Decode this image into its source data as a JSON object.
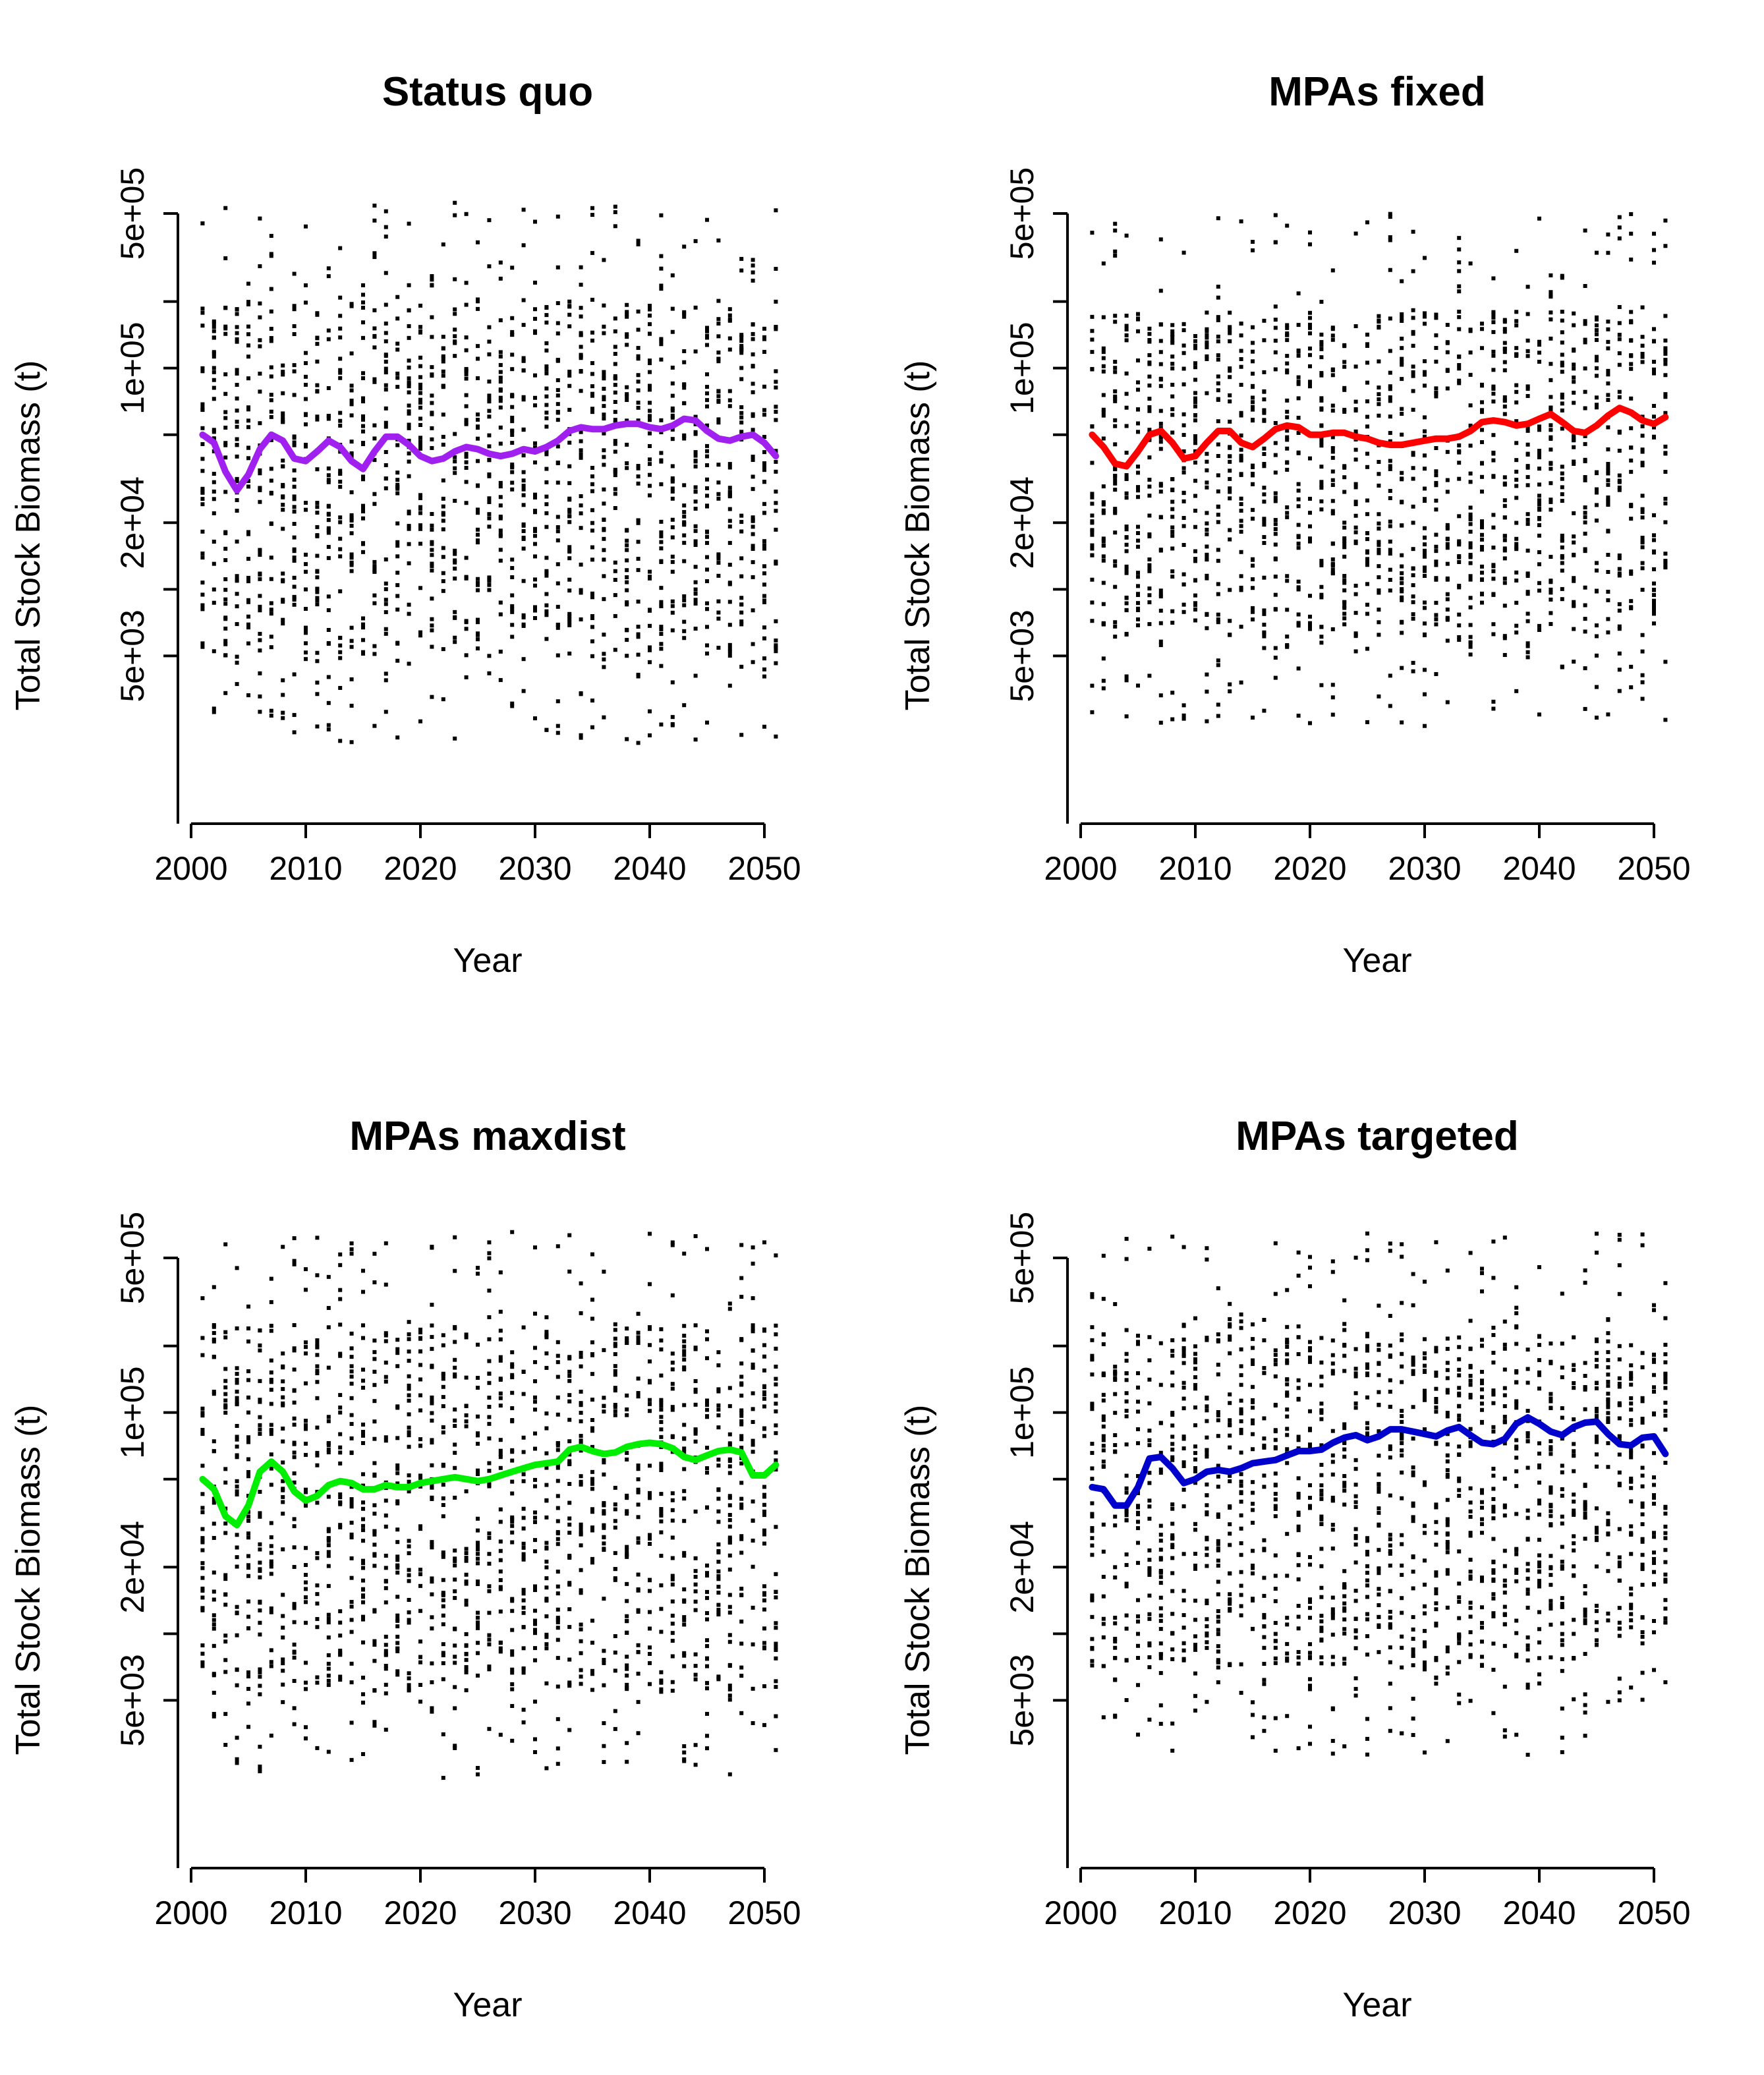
{
  "chart_data": [
    {
      "type": "scatter",
      "title": "Status quo",
      "xlabel": "Year",
      "ylabel": "Total Stock Biomass (t)",
      "x_range": [
        2001,
        2051
      ],
      "x_ticks": [
        2000,
        2010,
        2020,
        2030,
        2040,
        2050
      ],
      "y_scale": "log",
      "y_ticks": [
        {
          "value": 5000,
          "label": "5e+03"
        },
        {
          "value": 20000,
          "label": "2e+04"
        },
        {
          "value": 100000,
          "label": "1e+05"
        },
        {
          "value": 500000,
          "label": "5e+05"
        }
      ],
      "y_minor_ticks": [
        10000,
        50000,
        200000
      ],
      "ylim": [
        1000,
        700000
      ],
      "points_per_year": "about 30 simulation runs, spread between about 5e+03 and 2e+05 t",
      "line_color": "#a020f0",
      "mean_line": {
        "x": [
          2001,
          2002,
          2003,
          2004,
          2005,
          2006,
          2007,
          2008,
          2009,
          2010,
          2011,
          2012,
          2013,
          2014,
          2015,
          2016,
          2017,
          2018,
          2019,
          2020,
          2021,
          2022,
          2023,
          2024,
          2025,
          2026,
          2027,
          2028,
          2029,
          2030,
          2031,
          2032,
          2033,
          2034,
          2035,
          2036,
          2037,
          2038,
          2039,
          2040,
          2041,
          2042,
          2043,
          2044,
          2045,
          2046,
          2047,
          2048,
          2049,
          2050,
          2051
        ],
        "y": [
          50000,
          46000,
          34000,
          28000,
          33000,
          43000,
          50000,
          47000,
          39000,
          38000,
          42000,
          47000,
          44000,
          38000,
          35000,
          42000,
          49000,
          49000,
          45000,
          40000,
          38000,
          39000,
          42000,
          44000,
          43000,
          41000,
          40000,
          41000,
          43000,
          42000,
          44000,
          47000,
          52000,
          54000,
          53000,
          53000,
          55000,
          56000,
          56000,
          54000,
          53000,
          55000,
          59000,
          58000,
          52000,
          48000,
          47000,
          49000,
          50000,
          46000,
          40000
        ]
      },
      "scatter_range": {
        "lower": 5000,
        "upper": 200000
      }
    },
    {
      "type": "scatter",
      "title": "MPAs fixed",
      "xlabel": "Year",
      "ylabel": "Total Stock Biomass (t)",
      "x_range": [
        2001,
        2051
      ],
      "x_ticks": [
        2000,
        2010,
        2020,
        2030,
        2040,
        2050
      ],
      "y_scale": "log",
      "y_ticks": [
        {
          "value": 5000,
          "label": "5e+03"
        },
        {
          "value": 20000,
          "label": "2e+04"
        },
        {
          "value": 100000,
          "label": "1e+05"
        },
        {
          "value": 500000,
          "label": "5e+05"
        }
      ],
      "y_minor_ticks": [
        10000,
        50000,
        200000
      ],
      "ylim": [
        1000,
        700000
      ],
      "line_color": "#ff0000",
      "mean_line": {
        "x": [
          2001,
          2002,
          2003,
          2004,
          2005,
          2006,
          2007,
          2008,
          2009,
          2010,
          2011,
          2012,
          2013,
          2014,
          2015,
          2016,
          2017,
          2018,
          2019,
          2020,
          2021,
          2022,
          2023,
          2024,
          2025,
          2026,
          2027,
          2028,
          2029,
          2030,
          2031,
          2032,
          2033,
          2034,
          2035,
          2036,
          2037,
          2038,
          2039,
          2040,
          2041,
          2042,
          2043,
          2044,
          2045,
          2046,
          2047,
          2048,
          2049,
          2050,
          2051
        ],
        "y": [
          50000,
          44000,
          37000,
          36000,
          42000,
          50000,
          52000,
          46000,
          39000,
          40000,
          46000,
          52000,
          52000,
          46000,
          44000,
          48000,
          53000,
          55000,
          54000,
          50000,
          50000,
          51000,
          51000,
          49000,
          48000,
          46000,
          45000,
          45000,
          46000,
          47000,
          48000,
          48000,
          49000,
          52000,
          57000,
          58000,
          57000,
          55000,
          56000,
          59000,
          62000,
          57000,
          52000,
          51000,
          55000,
          61000,
          66000,
          63000,
          58000,
          56000,
          60000
        ]
      },
      "scatter_range": {
        "lower": 6000,
        "upper": 180000
      }
    },
    {
      "type": "scatter",
      "title": "MPAs maxdist",
      "xlabel": "Year",
      "ylabel": "Total Stock Biomass (t)",
      "x_range": [
        2001,
        2051
      ],
      "x_ticks": [
        2000,
        2010,
        2020,
        2030,
        2040,
        2050
      ],
      "y_scale": "log",
      "y_ticks": [
        {
          "value": 5000,
          "label": "5e+03"
        },
        {
          "value": 20000,
          "label": "2e+04"
        },
        {
          "value": 100000,
          "label": "1e+05"
        },
        {
          "value": 500000,
          "label": "5e+05"
        }
      ],
      "y_minor_ticks": [
        10000,
        50000,
        200000
      ],
      "ylim": [
        1000,
        700000
      ],
      "line_color": "#00ee00",
      "mean_line": {
        "x": [
          2001,
          2002,
          2003,
          2004,
          2005,
          2006,
          2007,
          2008,
          2009,
          2010,
          2011,
          2012,
          2013,
          2014,
          2015,
          2016,
          2017,
          2018,
          2019,
          2020,
          2021,
          2022,
          2023,
          2024,
          2025,
          2026,
          2027,
          2028,
          2029,
          2030,
          2031,
          2032,
          2033,
          2034,
          2035,
          2036,
          2037,
          2038,
          2039,
          2040,
          2041,
          2042,
          2043,
          2044,
          2045,
          2046,
          2047,
          2048,
          2049,
          2050,
          2051
        ],
        "y": [
          50000,
          45000,
          34000,
          31000,
          38000,
          54000,
          60000,
          54000,
          44000,
          40000,
          42000,
          47000,
          49000,
          48000,
          45000,
          45000,
          47000,
          46000,
          46000,
          48000,
          49000,
          50000,
          51000,
          50000,
          49000,
          50000,
          52000,
          54000,
          56000,
          58000,
          59000,
          60000,
          68000,
          70000,
          67000,
          65000,
          66000,
          70000,
          72000,
          73000,
          72000,
          69000,
          63000,
          61000,
          64000,
          67000,
          68000,
          66000,
          52000,
          52000,
          58000
        ]
      },
      "scatter_range": {
        "lower": 5500,
        "upper": 250000
      }
    },
    {
      "type": "scatter",
      "title": "MPAs targeted",
      "xlabel": "Year",
      "ylabel": "Total Stock Biomass (t)",
      "x_range": [
        2001,
        2051
      ],
      "x_ticks": [
        2000,
        2010,
        2020,
        2030,
        2040,
        2050
      ],
      "y_scale": "log",
      "y_ticks": [
        {
          "value": 5000,
          "label": "5e+03"
        },
        {
          "value": 20000,
          "label": "2e+04"
        },
        {
          "value": 100000,
          "label": "1e+05"
        },
        {
          "value": 500000,
          "label": "5e+05"
        }
      ],
      "y_minor_ticks": [
        10000,
        50000,
        200000
      ],
      "ylim": [
        1000,
        700000
      ],
      "line_color": "#0000cd",
      "mean_line": {
        "x": [
          2001,
          2002,
          2003,
          2004,
          2005,
          2006,
          2007,
          2008,
          2009,
          2010,
          2011,
          2012,
          2013,
          2014,
          2015,
          2016,
          2017,
          2018,
          2019,
          2020,
          2021,
          2022,
          2023,
          2024,
          2025,
          2026,
          2027,
          2028,
          2029,
          2030,
          2031,
          2032,
          2033,
          2034,
          2035,
          2036,
          2037,
          2038,
          2039,
          2040,
          2041,
          2042,
          2043,
          2044,
          2045,
          2046,
          2047,
          2048,
          2049,
          2050,
          2051
        ],
        "y": [
          46000,
          45000,
          38000,
          38000,
          46000,
          62000,
          63000,
          56000,
          48000,
          50000,
          54000,
          55000,
          54000,
          56000,
          59000,
          60000,
          61000,
          64000,
          67000,
          67000,
          68000,
          73000,
          77000,
          79000,
          75000,
          78000,
          84000,
          84000,
          82000,
          80000,
          78000,
          83000,
          86000,
          79000,
          73000,
          72000,
          76000,
          89000,
          95000,
          89000,
          82000,
          79000,
          86000,
          90000,
          91000,
          80000,
          72000,
          71000,
          77000,
          78000,
          65000
        ]
      },
      "scatter_range": {
        "lower": 7000,
        "upper": 230000
      }
    }
  ]
}
